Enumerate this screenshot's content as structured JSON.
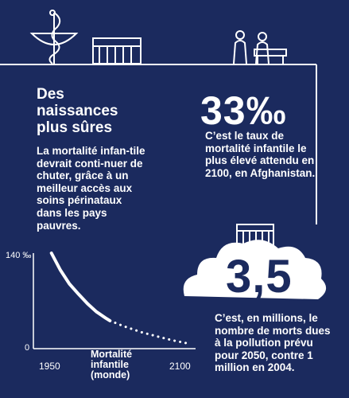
{
  "colors": {
    "background": "#1b2a5e",
    "foreground": "#ffffff"
  },
  "icons": [
    "caduceus-icon",
    "hospital-bed-icon",
    "doctor-consultation-icon",
    "building-icon",
    "cloud-icon"
  ],
  "left_block": {
    "title_lines": [
      "Des",
      "naissances",
      "plus sûres"
    ],
    "body": "La mortalité infan-tile devrait conti-nuer de chuter, grâce à un meilleur accès aux soins périnataux dans les pays pauvres."
  },
  "stat1": {
    "value": "33‰",
    "text": "C’est le taux de mortalité infantile le plus élevé attendu en 2100, en Afghanistan."
  },
  "stat2": {
    "value": "3,5",
    "text": "C’est, en millions, le nombre de morts dues à la pollution prévu pour 2050, contre 1 million en 2004."
  },
  "chart_data": {
    "type": "line",
    "xlabel": "Mortalité infantile (monde)",
    "ylabel": "",
    "y_unit": "‰",
    "xlim": [
      1930,
      2110
    ],
    "ylim": [
      0,
      140
    ],
    "x_tick_labels": [
      "1950",
      "2100"
    ],
    "y_tick_labels": [
      "140 ‰",
      "0"
    ],
    "series": [
      {
        "style": "solid",
        "x": [
          1950,
          1960,
          1970,
          1980,
          1990,
          2000,
          2010,
          2015
        ],
        "y": [
          140,
          115,
          95,
          80,
          66,
          54,
          45,
          41
        ]
      },
      {
        "style": "dotted",
        "x": [
          2015,
          2030,
          2050,
          2070,
          2085,
          2100
        ],
        "y": [
          41,
          33,
          24,
          17,
          12,
          8
        ]
      }
    ]
  }
}
